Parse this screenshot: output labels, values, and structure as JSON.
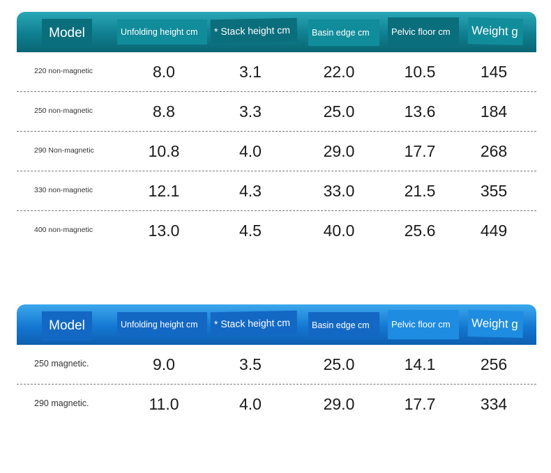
{
  "tables": [
    {
      "headers": {
        "model": "Model",
        "unfolding": "Unfolding height cm",
        "stack": "* Stack height cm",
        "basin": "Basin edge cm",
        "pelvic": "Pelvic floor cm",
        "weight": "Weight g"
      },
      "rows": [
        {
          "model": "220 non-magnetic",
          "unfolding": "8.0",
          "stack": "3.1",
          "basin": "22.0",
          "pelvic": "10.5",
          "weight": "145"
        },
        {
          "model": "250 non-magnetic",
          "unfolding": "8.8",
          "stack": "3.3",
          "basin": "25.0",
          "pelvic": "13.6",
          "weight": "184"
        },
        {
          "model": "290 Non-magnetic",
          "unfolding": "10.8",
          "stack": "4.0",
          "basin": "29.0",
          "pelvic": "17.7",
          "weight": "268"
        },
        {
          "model": "330 non-magnetic",
          "unfolding": "12.1",
          "stack": "4.3",
          "basin": "33.0",
          "pelvic": "21.5",
          "weight": "355"
        },
        {
          "model": "400 non-magnetic",
          "unfolding": "13.0",
          "stack": "4.5",
          "basin": "40.0",
          "pelvic": "25.6",
          "weight": "449"
        }
      ]
    },
    {
      "headers": {
        "model": "Model",
        "unfolding": "Unfolding height cm",
        "stack": "* Stack height cm",
        "basin": "Basin edge cm",
        "pelvic": "Pelvic floor cm",
        "weight": "Weight g"
      },
      "rows": [
        {
          "model": "250 magnetic.",
          "unfolding": "9.0",
          "stack": "3.5",
          "basin": "25.0",
          "pelvic": "14.1",
          "weight": "256"
        },
        {
          "model": "290 magnetic.",
          "unfolding": "11.0",
          "stack": "4.0",
          "basin": "29.0",
          "pelvic": "17.7",
          "weight": "334"
        }
      ]
    }
  ],
  "colors": {
    "non_magnetic_header": "#0f7f90",
    "magnetic_header": "#1478d2",
    "divider": "#777777"
  }
}
